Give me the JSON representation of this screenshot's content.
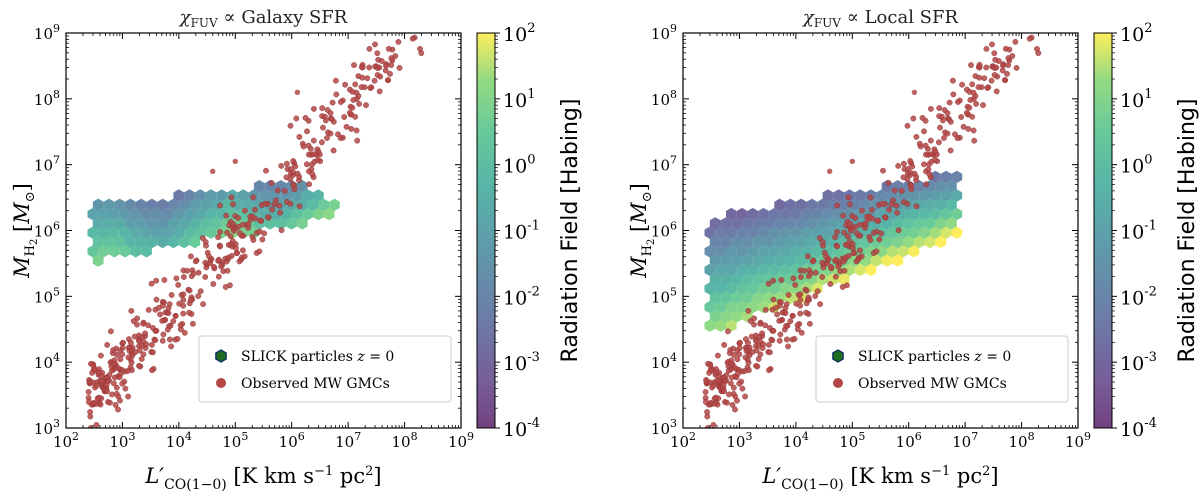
{
  "chart_data": [
    {
      "type": "scatter",
      "title": "χ_FUV ∝ Galaxy SFR",
      "title_parts": {
        "symbol": "χ",
        "subscript": "FUV",
        "rest": " ∝ Galaxy SFR"
      },
      "xlabel": "L′_CO(1−0) [K km s⁻¹ pc²]",
      "ylabel": "M_H₂ [M_⊙]",
      "xscale": "log",
      "yscale": "log",
      "xlim": [
        100,
        1000000000
      ],
      "ylim": [
        1000,
        1000000000
      ],
      "xticks": [
        "10^2",
        "10^3",
        "10^4",
        "10^5",
        "10^6",
        "10^7",
        "10^8",
        "10^9"
      ],
      "yticks": [
        "10^3",
        "10^4",
        "10^5",
        "10^6",
        "10^7",
        "10^8",
        "10^9"
      ],
      "legend": {
        "location": "lower-right",
        "entries": [
          "SLICK particles z = 0",
          "Observed MW GMCs"
        ]
      },
      "series": [
        {
          "name": "SLICK particles z = 0",
          "kind": "hexbin",
          "color_by": "Radiation Field [Habing]",
          "region": {
            "log_x": [
              2.4,
              6.8
            ],
            "log_y_upper_at_left": 6.4,
            "log_y_upper_at_right": 6.8,
            "log_y_lower_at_left": 5.5,
            "log_y_lower_at_right": 6.2
          }
        },
        {
          "name": "Observed MW GMCs",
          "kind": "scatter",
          "color": "#b44646",
          "trend": {
            "log_x": [
              2.4,
              8.3
            ],
            "log_y_at_start": 3.4,
            "slope": 0.97,
            "scatter_dex": 0.3
          }
        }
      ]
    },
    {
      "type": "scatter",
      "title": "χ_FUV ∝ Local SFR",
      "title_parts": {
        "symbol": "χ",
        "subscript": "FUV",
        "rest": " ∝ Local SFR"
      },
      "xlabel": "L′_CO(1−0) [K km s⁻¹ pc²]",
      "ylabel": "M_H₂ [M_⊙]",
      "xscale": "log",
      "yscale": "log",
      "xlim": [
        100,
        1000000000
      ],
      "ylim": [
        1000,
        1000000000
      ],
      "xticks": [
        "10^2",
        "10^3",
        "10^4",
        "10^5",
        "10^6",
        "10^7",
        "10^8",
        "10^9"
      ],
      "yticks": [
        "10^3",
        "10^4",
        "10^5",
        "10^6",
        "10^7",
        "10^8",
        "10^9"
      ],
      "legend": {
        "location": "lower-right",
        "entries": [
          "SLICK particles z = 0",
          "Observed MW GMCs"
        ]
      },
      "series": [
        {
          "name": "SLICK particles z = 0",
          "kind": "hexbin",
          "color_by": "Radiation Field [Habing]",
          "region": {
            "log_x": [
              2.4,
              6.9
            ],
            "log_y_upper_at_left": 6.2,
            "log_y_upper_at_right": 6.9,
            "log_y_lower_at_left": 4.4,
            "log_y_lower_at_right": 5.9
          }
        },
        {
          "name": "Observed MW GMCs",
          "kind": "scatter",
          "color": "#b44646",
          "trend": {
            "log_x": [
              2.4,
              8.3
            ],
            "log_y_at_start": 3.4,
            "slope": 0.97,
            "scatter_dex": 0.3
          }
        }
      ]
    }
  ],
  "colorbar": {
    "label": "Radiation Field [Habing]",
    "scale": "log",
    "range": [
      0.0001,
      100
    ],
    "ticks": [
      "10^2",
      "10^1",
      "10^0",
      "10^-1",
      "10^-2",
      "10^-3",
      "10^-4"
    ],
    "colormap": "viridis",
    "alpha": 0.75
  },
  "styles": {
    "gmc_color": "#b44646",
    "legend_hex_color": "#1f6b1f"
  }
}
